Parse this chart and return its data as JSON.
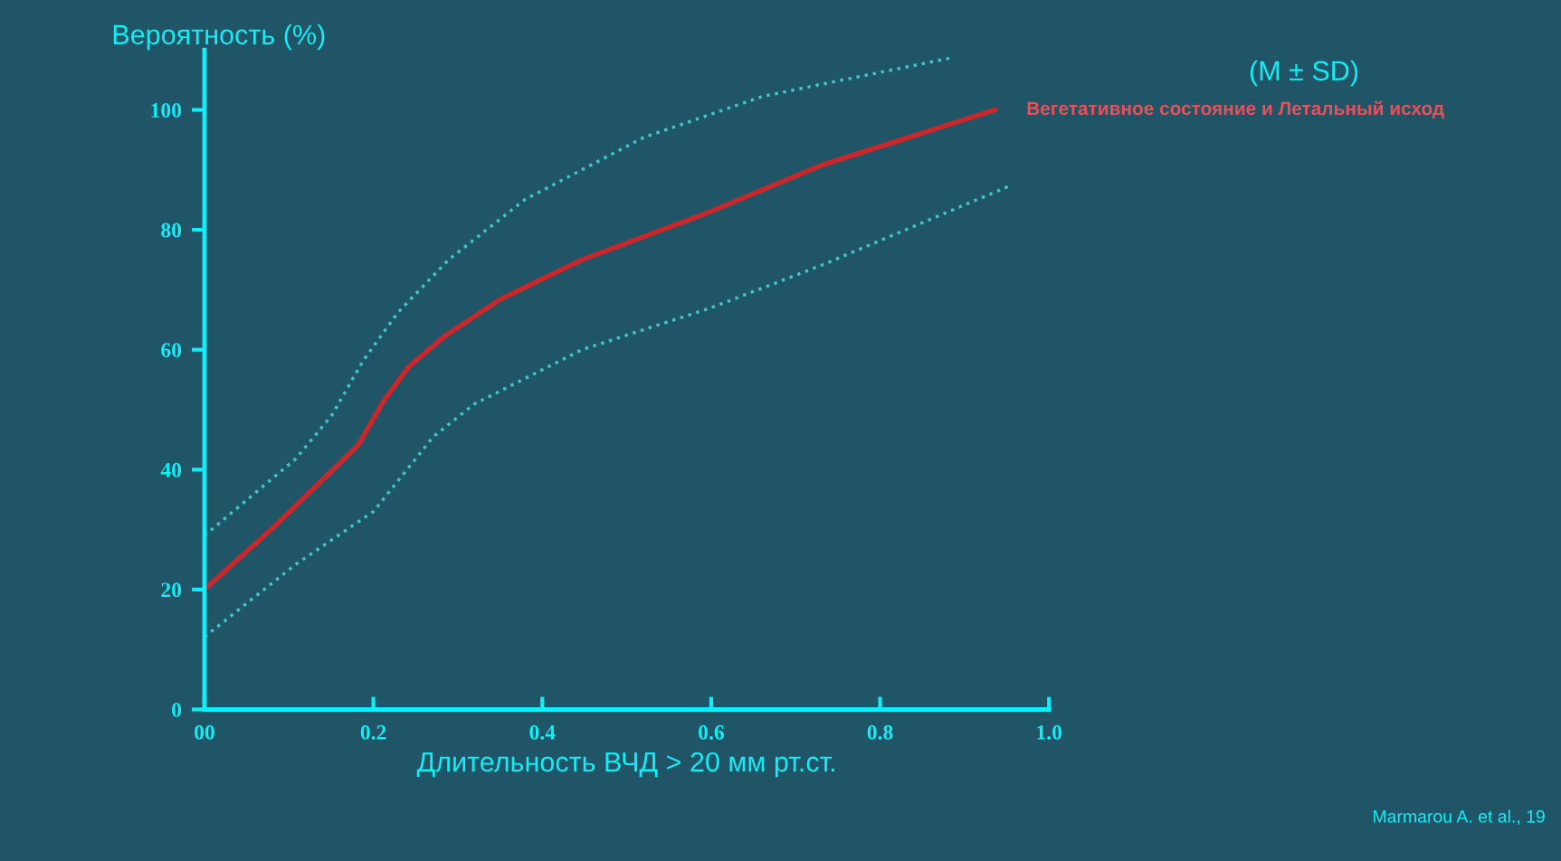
{
  "chart_data": {
    "type": "line",
    "ylabel": "Вероятность (%)",
    "xlabel": "Длительность ВЧД > 20 мм рт.ст.",
    "xlim": [
      0,
      1
    ],
    "xticks": [
      {
        "value": 0,
        "label": "00"
      },
      0.2,
      0.4,
      0.6,
      0.8,
      {
        "value": 1,
        "label": "1.0"
      }
    ],
    "ylim": [
      0,
      110
    ],
    "yticks": [
      0,
      20,
      40,
      60,
      80,
      100
    ],
    "grid": false,
    "legend": false,
    "series": [
      {
        "name": "Вегетативное состояние и Летальный исход",
        "color": "#c8282c",
        "line_style": "solid",
        "x": [
          0,
          0.078,
          0.139,
          0.182,
          0.212,
          0.242,
          0.284,
          0.35,
          0.447,
          0.593,
          0.731,
          0.936
        ],
        "values": [
          20,
          29.9,
          38.2,
          44.1,
          51.4,
          57.2,
          62.2,
          68.4,
          75,
          82.7,
          90.8,
          100
        ]
      },
      {
        "color": "#40c4cc",
        "line_style": "dotted",
        "x": [
          0,
          0.108,
          0.151,
          0.188,
          0.229,
          0.289,
          0.379,
          0.52,
          0.662,
          0.885
        ],
        "values": [
          29,
          41.8,
          49.1,
          58.2,
          66.2,
          75,
          85,
          95.4,
          102.3,
          108.7
        ]
      },
      {
        "color": "#40c4cc",
        "line_style": "dotted",
        "x": [
          0,
          0.108,
          0.2,
          0.271,
          0.319,
          0.447,
          0.6,
          0.731,
          0.953
        ],
        "values": [
          12.1,
          24.2,
          33,
          45.5,
          50.9,
          60,
          67,
          74.1,
          87.3
        ]
      }
    ],
    "annotations": [
      "(M ± SD)",
      "Marmarou A. et al., 19"
    ]
  }
}
